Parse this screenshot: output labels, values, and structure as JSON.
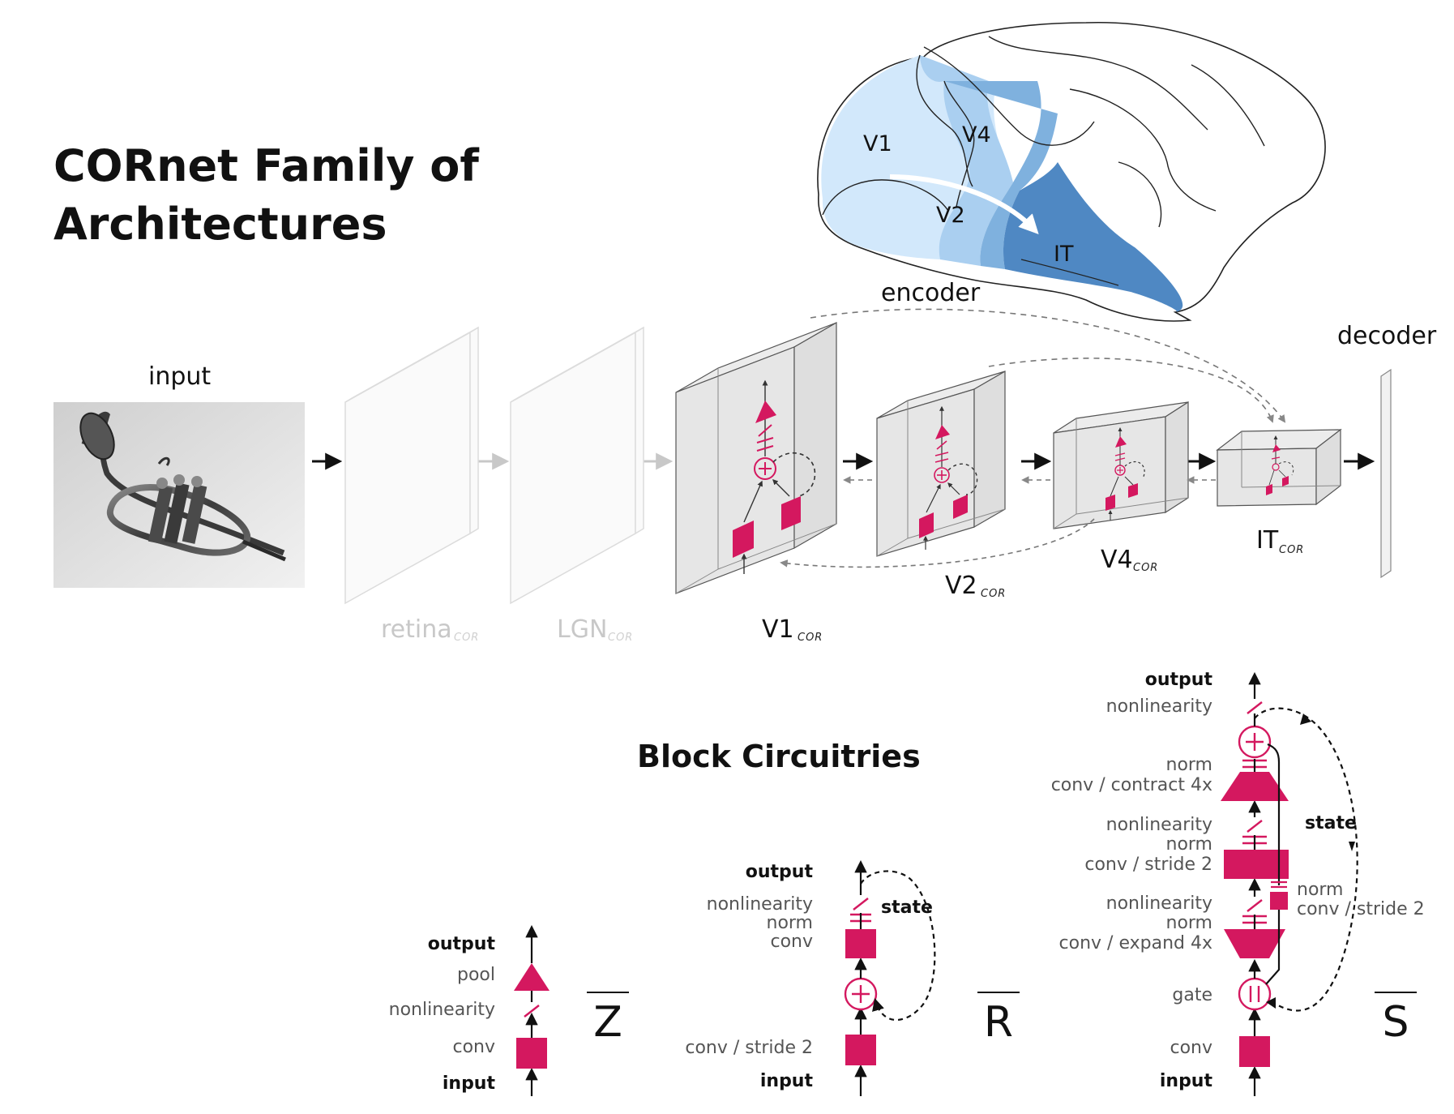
{
  "title_line1": "CORnet Family of",
  "title_line2": "Architectures",
  "brain": {
    "v1": "V1",
    "v2": "V2",
    "v4": "V4",
    "it": "IT"
  },
  "pipeline": {
    "encoder": "encoder",
    "decoder": "decoder",
    "input": "input",
    "retina": "retina",
    "lgn": "LGN",
    "v1": "V1",
    "v2": "V2",
    "v4": "V4",
    "it": "IT",
    "cor": "COR"
  },
  "block_title": "Block Circuitries",
  "circuits": {
    "z": {
      "name": "Z",
      "output": "output",
      "pool": "pool",
      "nonlinearity": "nonlinearity",
      "conv": "conv",
      "input": "input"
    },
    "r": {
      "name": "R",
      "output": "output",
      "nonlinearity": "nonlinearity",
      "norm": "norm",
      "conv": "conv",
      "state": "state",
      "conv_stride": "conv / stride 2",
      "input": "input"
    },
    "s": {
      "name": "S",
      "output": "output",
      "nonlinearity1": "nonlinearity",
      "norm1": "norm",
      "conv_contract": "conv / contract 4x",
      "nonlinearity2": "nonlinearity",
      "norm2": "norm",
      "conv_stride": "conv / stride 2",
      "nonlinearity3": "nonlinearity",
      "norm3": "norm",
      "conv_expand": "conv / expand 4x",
      "gate": "gate",
      "conv": "conv",
      "input": "input",
      "state": "state",
      "skip_norm": "norm",
      "skip_conv": "conv / stride 2"
    }
  },
  "colors": {
    "accent": "#d4185f",
    "v1": "#d2e8fb",
    "v2": "#aacff0",
    "v4": "#7fb1de",
    "it": "#4f88c3"
  }
}
